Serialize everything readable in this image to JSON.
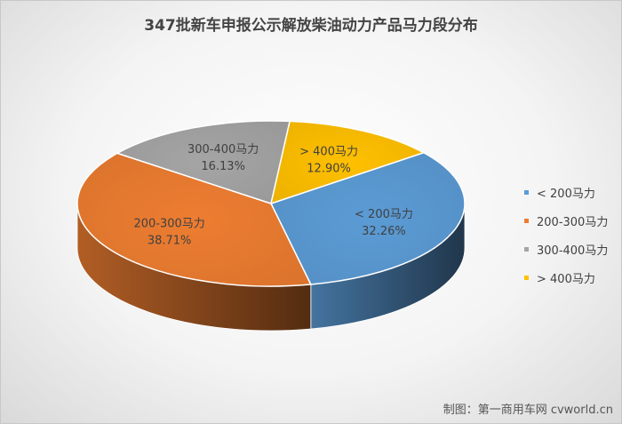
{
  "title": "347批新车申报公示解放柴油动力产品马力段分布",
  "credit": "制图：第一商用车网 cvworld.cn",
  "chart_data": {
    "type": "pie",
    "title": "347批新车申报公示解放柴油动力产品马力段分布",
    "legend_position": "right",
    "slices": [
      {
        "label": "< 200马力",
        "value_label": "32.26%",
        "value": 32.26,
        "color": "#5B9BD5"
      },
      {
        "label": "200-300马力",
        "value_label": "38.71%",
        "value": 38.71,
        "color": "#ED7D31"
      },
      {
        "label": "300-400马力",
        "value_label": "16.13%",
        "value": 16.13,
        "color": "#A5A5A5"
      },
      {
        "label": "> 400马力",
        "value_label": "12.90%",
        "value": 12.9,
        "color": "#FFC000"
      }
    ]
  }
}
